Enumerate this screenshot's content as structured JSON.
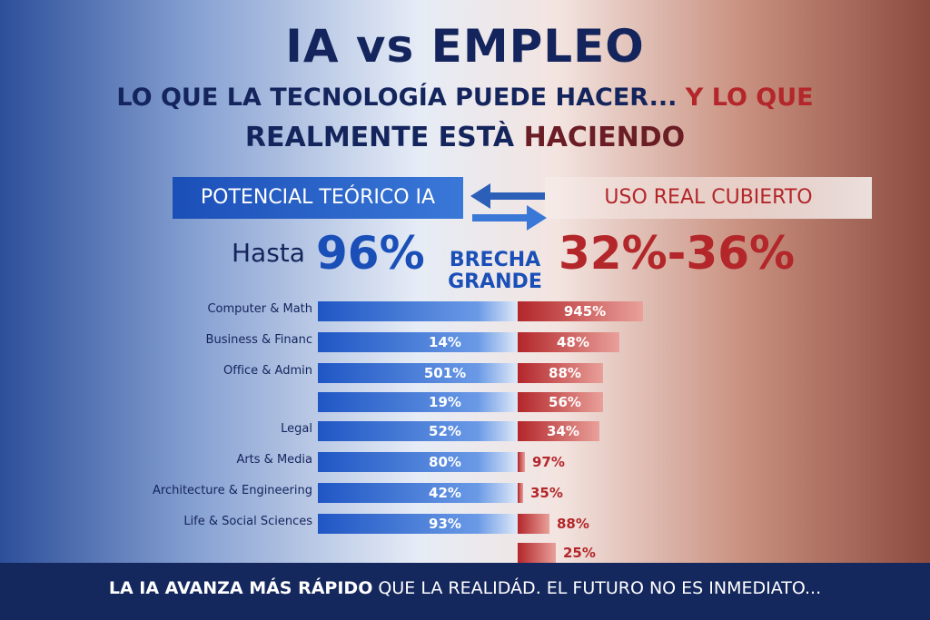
{
  "header": {
    "title": "IA vs EMPLEO",
    "subtitle_line1": {
      "main": "LO QUE LA TECNOLOGÍA PUEDE HACER...",
      "accent": "Y LO QUE"
    },
    "subtitle_line2": {
      "main": "REALMENTE ESTÀ",
      "accent": "HACIENDO"
    }
  },
  "left_panel": {
    "banner": "POTENCIAL TEÓRICO IA",
    "prefix": "Hasta",
    "headline": "96%"
  },
  "gap_label": {
    "line1": "BRECHA",
    "line2": "GRANDE"
  },
  "right_panel": {
    "banner": "USO REAL CUBIERTO",
    "headline": "32%-36%"
  },
  "rows": [
    {
      "label": "Computer & Math",
      "right": "945%"
    },
    {
      "label": "Business & Financ",
      "left": "14%",
      "right": "48%"
    },
    {
      "label": "Office & Admin",
      "left": "501%",
      "right": "88%"
    },
    {
      "left": "19%",
      "right": "56%"
    },
    {
      "label": "Legal",
      "left": "52%",
      "right": "34%"
    },
    {
      "label": "Arts & Media",
      "left": "80%",
      "right": "97%"
    },
    {
      "label": "Architecture & Engineering",
      "left": "42%",
      "right": "35%"
    },
    {
      "label": "Life & Social Sciences",
      "left": "93%",
      "right": "88%"
    },
    {
      "right": "25%"
    }
  ],
  "footer": {
    "bold": "LA IA AVANZA MÁS RÁPIDO",
    "rest": "QUE LA REALIDÁD. EL FUTURO NO ES INMEDIATO..."
  }
}
